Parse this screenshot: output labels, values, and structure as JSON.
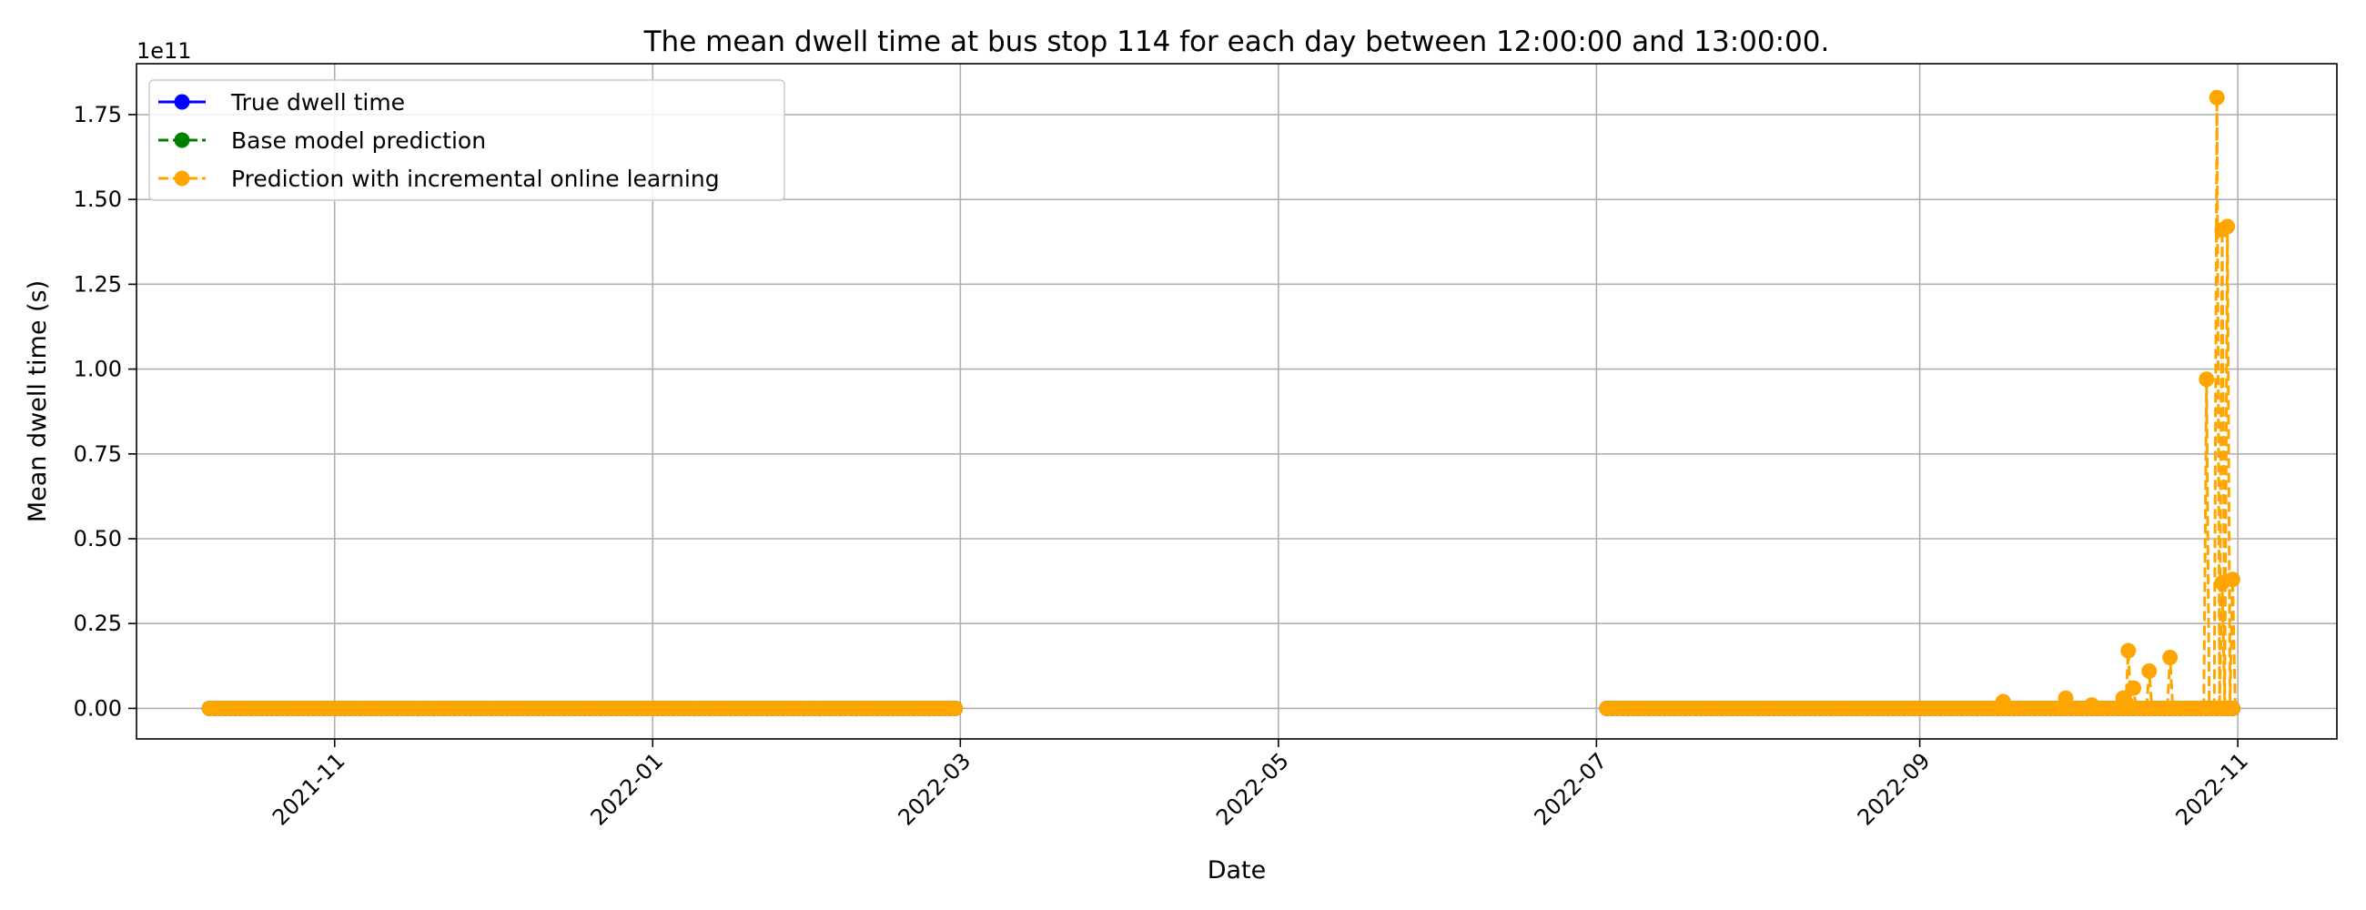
{
  "chart_data": {
    "type": "line",
    "title": "The mean dwell time at bus stop 114 for each day between 12:00:00 and 13:00:00.",
    "xlabel": "Date",
    "ylabel": "Mean dwell time (s)",
    "y_offset_label": "1e11",
    "xlim": [
      "2021-09-24",
      "2022-11-20"
    ],
    "ylim": [
      -0.09,
      1.9
    ],
    "x_ticks": [
      "2021-11-01",
      "2022-01-01",
      "2022-03-01",
      "2022-05-01",
      "2022-07-01",
      "2022-09-01",
      "2022-11-01"
    ],
    "x_tick_labels": [
      "2021-11",
      "2022-01",
      "2022-03",
      "2022-05",
      "2022-07",
      "2022-09",
      "2022-11"
    ],
    "y_ticks": [
      0,
      0.25,
      0.5,
      0.75,
      1.0,
      1.25,
      1.5,
      1.75
    ],
    "y_tick_labels": [
      "0.00",
      "0.25",
      "0.50",
      "0.75",
      "1.00",
      "1.25",
      "1.50",
      "1.75"
    ],
    "grid": true,
    "legend_position": "upper-left",
    "series": [
      {
        "name": "True dwell time",
        "color": "#0000ff",
        "line_style": "solid",
        "marker": "circle",
        "segments": [
          {
            "start": "2021-10-08",
            "end": "2022-02-28",
            "value": 0
          },
          {
            "start": "2022-07-03",
            "end": "2022-10-31",
            "value": 0
          }
        ],
        "points": []
      },
      {
        "name": "Base model prediction",
        "color": "#008000",
        "line_style": "dashed",
        "marker": "circle",
        "segments": [
          {
            "start": "2021-10-08",
            "end": "2022-02-28",
            "value": 0
          },
          {
            "start": "2022-07-03",
            "end": "2022-10-31",
            "value": 0
          }
        ],
        "points": []
      },
      {
        "name": "Prediction with incremental online learning",
        "color": "#ffa500",
        "line_style": "dashed",
        "marker": "circle",
        "segments": [
          {
            "start": "2021-10-08",
            "end": "2022-02-28",
            "value": 0
          },
          {
            "start": "2022-07-03",
            "end": "2022-10-31",
            "value": 0
          }
        ],
        "points": [
          {
            "x": "2022-09-17",
            "y": 0.02
          },
          {
            "x": "2022-09-29",
            "y": 0.03
          },
          {
            "x": "2022-10-04",
            "y": 0.01
          },
          {
            "x": "2022-10-10",
            "y": 0.03
          },
          {
            "x": "2022-10-11",
            "y": 0.17
          },
          {
            "x": "2022-10-12",
            "y": 0.06
          },
          {
            "x": "2022-10-15",
            "y": 0.11
          },
          {
            "x": "2022-10-19",
            "y": 0.15
          },
          {
            "x": "2022-10-26",
            "y": 0.97
          },
          {
            "x": "2022-10-28",
            "y": 1.8
          },
          {
            "x": "2022-10-29",
            "y": 1.41
          },
          {
            "x": "2022-10-29",
            "y": 0.37
          },
          {
            "x": "2022-10-30",
            "y": 1.42
          },
          {
            "x": "2022-10-31",
            "y": 0.38
          }
        ]
      }
    ]
  }
}
